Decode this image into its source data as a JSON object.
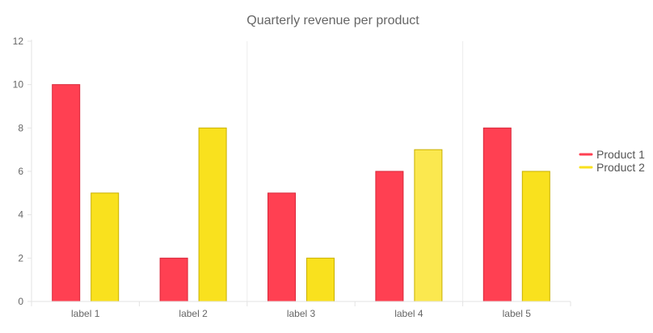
{
  "chart_data": {
    "type": "bar",
    "title": "Quarterly revenue per product",
    "xlabel": "",
    "ylabel": "",
    "categories": [
      "label 1",
      "label 2",
      "label 3",
      "label 4",
      "label 5"
    ],
    "series": [
      {
        "name": "Product 1",
        "values": [
          10,
          2,
          5,
          6,
          8
        ],
        "color": "#ff4052",
        "stroke": "#d9283a"
      },
      {
        "name": "Product 2",
        "values": [
          5,
          8,
          2,
          7,
          6
        ],
        "color": "#f9e11e",
        "stroke": "#c9b000"
      }
    ],
    "ylim": [
      0,
      12
    ],
    "yticks": [
      0,
      2,
      4,
      6,
      8,
      10,
      12
    ],
    "grid": true,
    "legend_position": "right",
    "highlight_colors": {
      "label 4|Product 2": "#fbe84f"
    }
  }
}
